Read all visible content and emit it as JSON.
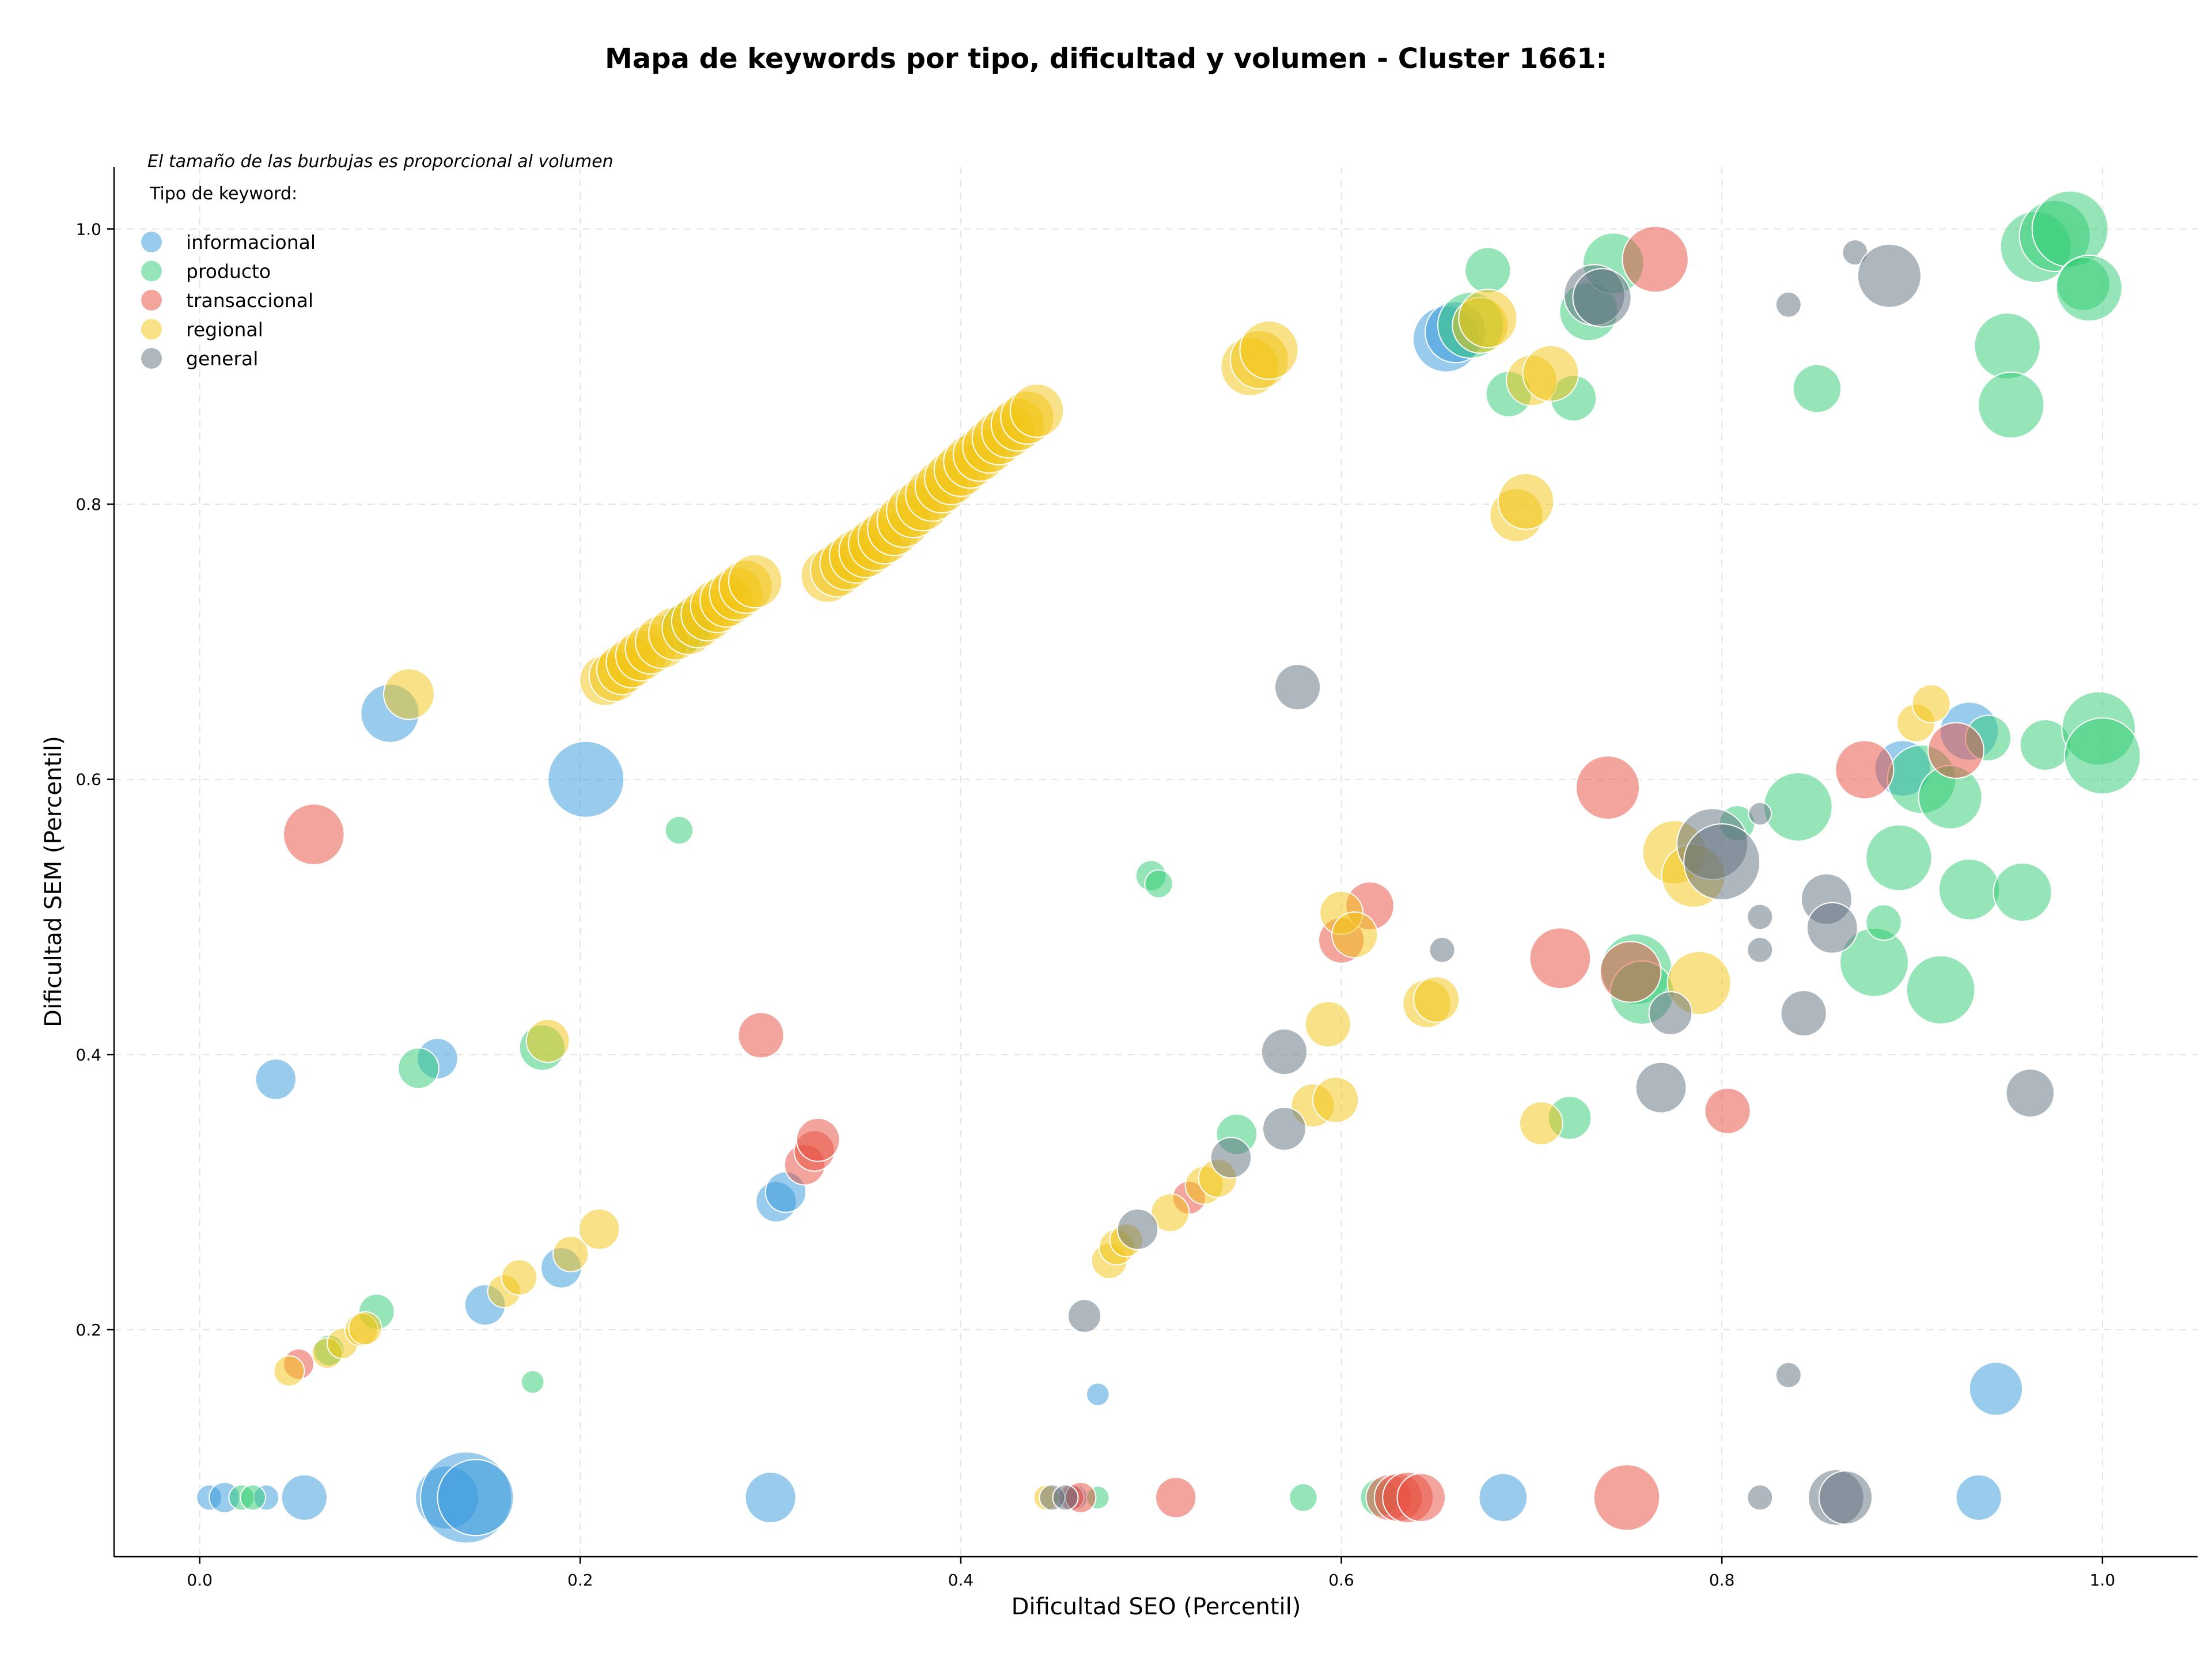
{
  "chart_data": {
    "type": "scatter",
    "title": "Mapa de keywords por tipo, dificultad y volumen - Cluster 1661:",
    "xlabel": "Dificultad SEO (Percentil)",
    "ylabel": "Dificultad SEM (Percentil)",
    "xlim": [
      -0.045,
      1.05
    ],
    "ylim": [
      0.035,
      1.045
    ],
    "xticks": [
      0.0,
      0.2,
      0.4,
      0.6,
      0.8,
      1.0
    ],
    "xtick_labels": [
      "0.0",
      "0.2",
      "0.4",
      "0.6",
      "0.8",
      "1.0"
    ],
    "yticks": [
      0.2,
      0.4,
      0.6,
      0.8,
      1.0
    ],
    "ytick_labels": [
      "0.2",
      "0.4",
      "0.6",
      "0.8",
      "1.0"
    ],
    "grid": true,
    "annotation": "El tamaño de las burbujas es proporcional al volumen",
    "legend": {
      "title": "Tipo de keyword:",
      "position": "top-left",
      "entries": [
        "informacional",
        "producto",
        "transaccional",
        "regional",
        "general"
      ]
    },
    "colors": {
      "informacional": "#3498db",
      "producto": "#2ecc71",
      "transaccional": "#e74c3c",
      "regional": "#f1c40f",
      "general": "#5d6d7e"
    },
    "series": [
      {
        "name": "informacional",
        "points": [
          [
            0.005,
            0.078,
            1.0
          ],
          [
            0.013,
            0.078,
            1.2
          ],
          [
            0.035,
            0.078,
            1.0
          ],
          [
            0.055,
            0.078,
            1.8
          ],
          [
            0.13,
            0.078,
            2.5
          ],
          [
            0.14,
            0.078,
            3.6
          ],
          [
            0.145,
            0.078,
            3.0
          ],
          [
            0.3,
            0.078,
            2.0
          ],
          [
            0.685,
            0.078,
            1.9
          ],
          [
            0.935,
            0.078,
            1.8
          ],
          [
            0.46,
            0.078,
            1.0
          ],
          [
            0.472,
            0.153,
            0.9
          ],
          [
            0.944,
            0.157,
            2.1
          ],
          [
            0.15,
            0.218,
            1.6
          ],
          [
            0.19,
            0.245,
            1.6
          ],
          [
            0.303,
            0.293,
            1.6
          ],
          [
            0.308,
            0.3,
            1.6
          ],
          [
            0.125,
            0.397,
            1.6
          ],
          [
            0.04,
            0.382,
            1.6
          ],
          [
            0.1,
            0.648,
            2.3
          ],
          [
            0.203,
            0.6,
            3.0
          ],
          [
            0.655,
            0.92,
            2.6
          ],
          [
            0.66,
            0.925,
            2.4
          ],
          [
            0.93,
            0.635,
            2.3
          ],
          [
            0.895,
            0.608,
            2.2
          ]
        ]
      },
      {
        "name": "producto",
        "points": [
          [
            0.022,
            0.078,
            1.0
          ],
          [
            0.028,
            0.078,
            1.0
          ],
          [
            0.472,
            0.078,
            0.9
          ],
          [
            0.58,
            0.078,
            1.1
          ],
          [
            0.62,
            0.078,
            1.5
          ],
          [
            0.175,
            0.162,
            0.9
          ],
          [
            0.093,
            0.213,
            1.4
          ],
          [
            0.068,
            0.185,
            1.2
          ],
          [
            0.115,
            0.39,
            1.6
          ],
          [
            0.18,
            0.405,
            1.8
          ],
          [
            0.252,
            0.563,
            1.1
          ],
          [
            0.255,
            0.71,
            2.0
          ],
          [
            0.5,
            0.53,
            1.2
          ],
          [
            0.504,
            0.524,
            1.1
          ],
          [
            0.545,
            0.342,
            1.6
          ],
          [
            0.72,
            0.354,
            1.7
          ],
          [
            0.677,
            0.97,
            1.8
          ],
          [
            0.688,
            0.88,
            1.8
          ],
          [
            0.722,
            0.877,
            1.8
          ],
          [
            0.73,
            0.94,
            2.3
          ],
          [
            0.743,
            0.975,
            2.4
          ],
          [
            0.668,
            0.93,
            2.6
          ],
          [
            0.755,
            0.462,
            2.8
          ],
          [
            0.758,
            0.445,
            2.5
          ],
          [
            0.808,
            0.568,
            1.4
          ],
          [
            0.85,
            0.884,
            1.9
          ],
          [
            0.84,
            0.58,
            2.7
          ],
          [
            0.88,
            0.467,
            2.7
          ],
          [
            0.885,
            0.496,
            1.4
          ],
          [
            0.893,
            0.543,
            2.6
          ],
          [
            0.905,
            0.6,
            2.7
          ],
          [
            0.915,
            0.447,
            2.7
          ],
          [
            0.92,
            0.587,
            2.5
          ],
          [
            0.93,
            0.52,
            2.4
          ],
          [
            0.94,
            0.63,
            1.8
          ],
          [
            0.95,
            0.915,
            2.6
          ],
          [
            0.952,
            0.872,
            2.6
          ],
          [
            0.958,
            0.518,
            2.3
          ],
          [
            0.965,
            0.987,
            2.8
          ],
          [
            0.97,
            0.625,
            2.0
          ],
          [
            0.975,
            0.995,
            2.8
          ],
          [
            0.983,
            1.0,
            3.0
          ],
          [
            0.99,
            0.96,
            2.1
          ],
          [
            0.993,
            0.957,
            2.6
          ],
          [
            0.998,
            0.637,
            2.9
          ],
          [
            1.0,
            0.617,
            3.0
          ]
        ]
      },
      {
        "name": "transaccional",
        "points": [
          [
            0.052,
            0.175,
            1.2
          ],
          [
            0.06,
            0.56,
            2.4
          ],
          [
            0.295,
            0.414,
            1.8
          ],
          [
            0.318,
            0.32,
            1.6
          ],
          [
            0.323,
            0.33,
            1.6
          ],
          [
            0.325,
            0.338,
            1.7
          ],
          [
            0.458,
            0.078,
            1.0
          ],
          [
            0.463,
            0.078,
            1.2
          ],
          [
            0.513,
            0.078,
            1.6
          ],
          [
            0.52,
            0.296,
            1.3
          ],
          [
            0.6,
            0.483,
            1.8
          ],
          [
            0.615,
            0.508,
            1.9
          ],
          [
            0.625,
            0.078,
            1.8
          ],
          [
            0.63,
            0.078,
            1.9
          ],
          [
            0.635,
            0.078,
            2.0
          ],
          [
            0.642,
            0.078,
            1.9
          ],
          [
            0.715,
            0.47,
            2.4
          ],
          [
            0.74,
            0.594,
            2.5
          ],
          [
            0.75,
            0.078,
            2.6
          ],
          [
            0.752,
            0.46,
            2.4
          ],
          [
            0.765,
            0.978,
            2.6
          ],
          [
            0.803,
            0.359,
            1.8
          ],
          [
            0.875,
            0.607,
            2.3
          ],
          [
            0.923,
            0.621,
            2.2
          ]
        ]
      },
      {
        "name": "regional",
        "points": [
          [
            0.047,
            0.17,
            1.2
          ],
          [
            0.067,
            0.183,
            1.2
          ],
          [
            0.075,
            0.19,
            1.2
          ],
          [
            0.085,
            0.2,
            1.3
          ],
          [
            0.087,
            0.201,
            1.3
          ],
          [
            0.11,
            0.662,
            2.0
          ],
          [
            0.16,
            0.228,
            1.3
          ],
          [
            0.168,
            0.238,
            1.4
          ],
          [
            0.183,
            0.41,
            1.7
          ],
          [
            0.195,
            0.255,
            1.4
          ],
          [
            0.21,
            0.273,
            1.6
          ],
          [
            0.213,
            0.672,
            2.0
          ],
          [
            0.218,
            0.675,
            2.0
          ],
          [
            0.222,
            0.68,
            2.0
          ],
          [
            0.227,
            0.685,
            2.0
          ],
          [
            0.232,
            0.69,
            2.0
          ],
          [
            0.237,
            0.695,
            2.0
          ],
          [
            0.243,
            0.7,
            2.1
          ],
          [
            0.25,
            0.706,
            2.1
          ],
          [
            0.257,
            0.71,
            2.1
          ],
          [
            0.262,
            0.715,
            2.1
          ],
          [
            0.267,
            0.72,
            2.1
          ],
          [
            0.272,
            0.726,
            2.1
          ],
          [
            0.277,
            0.73,
            2.1
          ],
          [
            0.282,
            0.735,
            2.1
          ],
          [
            0.287,
            0.74,
            2.1
          ],
          [
            0.292,
            0.744,
            2.1
          ],
          [
            0.33,
            0.748,
            2.1
          ],
          [
            0.335,
            0.752,
            2.1
          ],
          [
            0.34,
            0.757,
            2.1
          ],
          [
            0.345,
            0.762,
            2.1
          ],
          [
            0.35,
            0.766,
            2.1
          ],
          [
            0.355,
            0.771,
            2.1
          ],
          [
            0.36,
            0.776,
            2.1
          ],
          [
            0.365,
            0.782,
            2.1
          ],
          [
            0.37,
            0.788,
            2.1
          ],
          [
            0.375,
            0.795,
            2.1
          ],
          [
            0.38,
            0.8,
            2.1
          ],
          [
            0.385,
            0.807,
            2.1
          ],
          [
            0.39,
            0.813,
            2.1
          ],
          [
            0.395,
            0.819,
            2.1
          ],
          [
            0.4,
            0.825,
            2.1
          ],
          [
            0.405,
            0.831,
            2.1
          ],
          [
            0.41,
            0.836,
            2.1
          ],
          [
            0.415,
            0.842,
            2.1
          ],
          [
            0.42,
            0.848,
            2.1
          ],
          [
            0.425,
            0.853,
            2.1
          ],
          [
            0.43,
            0.858,
            2.1
          ],
          [
            0.435,
            0.863,
            2.1
          ],
          [
            0.44,
            0.868,
            2.1
          ],
          [
            0.445,
            0.078,
            1.0
          ],
          [
            0.478,
            0.25,
            1.4
          ],
          [
            0.482,
            0.26,
            1.4
          ],
          [
            0.487,
            0.265,
            1.3
          ],
          [
            0.51,
            0.285,
            1.5
          ],
          [
            0.528,
            0.305,
            1.5
          ],
          [
            0.535,
            0.31,
            1.5
          ],
          [
            0.552,
            0.9,
            2.3
          ],
          [
            0.557,
            0.905,
            2.3
          ],
          [
            0.562,
            0.912,
            2.3
          ],
          [
            0.585,
            0.363,
            1.7
          ],
          [
            0.593,
            0.422,
            1.8
          ],
          [
            0.597,
            0.367,
            1.8
          ],
          [
            0.6,
            0.503,
            1.7
          ],
          [
            0.607,
            0.487,
            1.8
          ],
          [
            0.645,
            0.437,
            1.9
          ],
          [
            0.65,
            0.44,
            1.8
          ],
          [
            0.673,
            0.93,
            2.2
          ],
          [
            0.677,
            0.935,
            2.3
          ],
          [
            0.692,
            0.792,
            2.1
          ],
          [
            0.697,
            0.802,
            2.2
          ],
          [
            0.705,
            0.35,
            1.7
          ],
          [
            0.7,
            0.89,
            2.0
          ],
          [
            0.71,
            0.895,
            2.2
          ],
          [
            0.775,
            0.547,
            2.5
          ],
          [
            0.785,
            0.53,
            2.5
          ],
          [
            0.788,
            0.452,
            2.5
          ],
          [
            0.902,
            0.641,
            1.5
          ],
          [
            0.91,
            0.655,
            1.5
          ]
        ]
      },
      {
        "name": "general",
        "points": [
          [
            0.448,
            0.078,
            1.0
          ],
          [
            0.455,
            0.078,
            1.0
          ],
          [
            0.465,
            0.21,
            1.3
          ],
          [
            0.493,
            0.273,
            1.6
          ],
          [
            0.542,
            0.325,
            1.6
          ],
          [
            0.57,
            0.346,
            1.7
          ],
          [
            0.57,
            0.402,
            1.8
          ],
          [
            0.577,
            0.667,
            1.8
          ],
          [
            0.653,
            0.476,
            1.0
          ],
          [
            0.733,
            0.952,
            2.4
          ],
          [
            0.737,
            0.95,
            2.3
          ],
          [
            0.768,
            0.376,
            2.0
          ],
          [
            0.773,
            0.43,
            1.7
          ],
          [
            0.795,
            0.553,
            2.8
          ],
          [
            0.8,
            0.54,
            3.0
          ],
          [
            0.82,
            0.5,
            1.0
          ],
          [
            0.82,
            0.476,
            1.0
          ],
          [
            0.82,
            0.575,
            0.9
          ],
          [
            0.82,
            0.078,
            1.0
          ],
          [
            0.835,
            0.167,
            1.0
          ],
          [
            0.835,
            0.945,
            1.0
          ],
          [
            0.843,
            0.43,
            1.8
          ],
          [
            0.855,
            0.513,
            2.0
          ],
          [
            0.858,
            0.492,
            2.0
          ],
          [
            0.86,
            0.078,
            2.2
          ],
          [
            0.865,
            0.078,
            2.1
          ],
          [
            0.87,
            0.983,
            1.0
          ],
          [
            0.888,
            0.966,
            2.5
          ],
          [
            0.962,
            0.372,
            1.9
          ]
        ]
      }
    ]
  }
}
